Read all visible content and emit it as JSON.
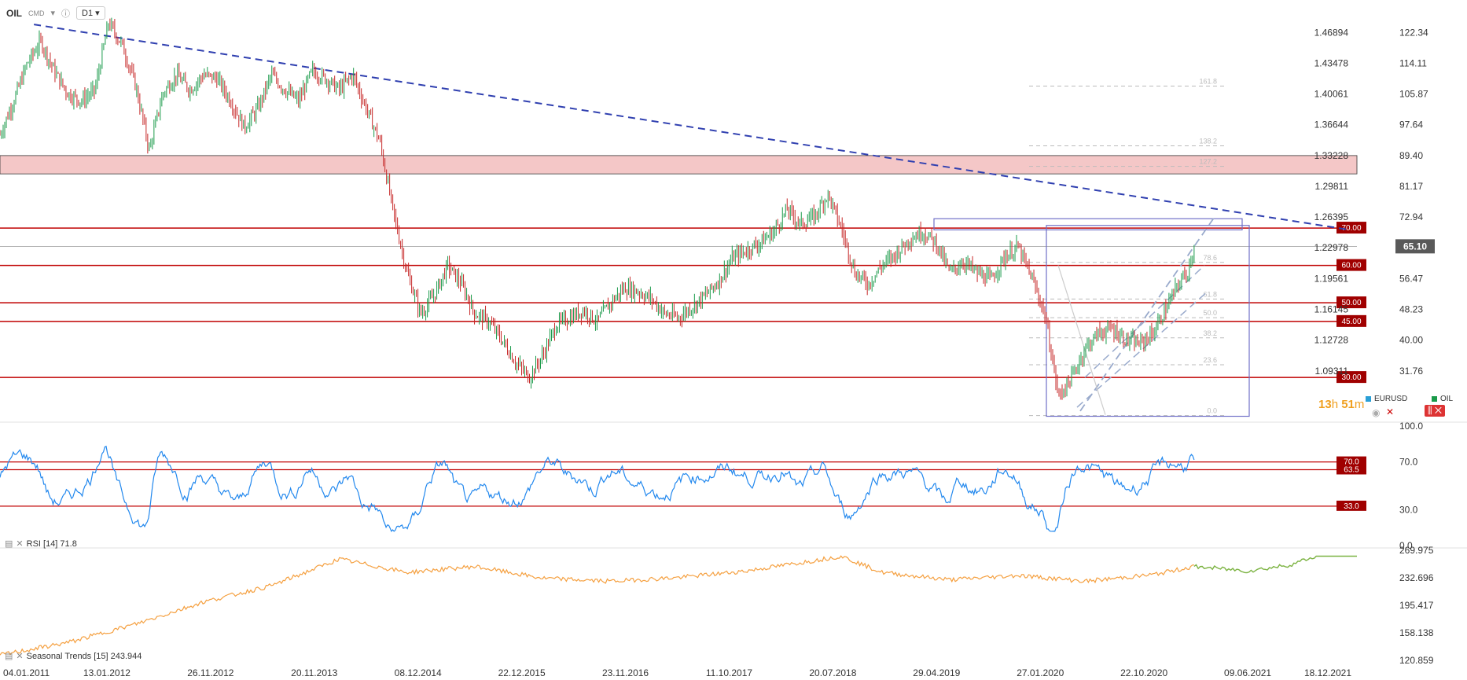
{
  "toolbar": {
    "symbol": "OIL",
    "exchange": "CMD",
    "timeframe": "D1"
  },
  "legend": {
    "eurusd": "EURUSD",
    "oil": "OIL",
    "eurusd_color": "#2a9fd6",
    "oil_color": "#1a9a4a"
  },
  "timer": {
    "hours": "13",
    "h": "h",
    "minutes": "51",
    "m": "m"
  },
  "current_price": "65.10",
  "rsi_label": "RSI [14]  71.8",
  "seasonal_label": "Seasonal  Trends [15]  243.944",
  "colors": {
    "rsi": "#2288ee",
    "seasonal": "#f5a040",
    "projection": "#7cb342",
    "level": "#c00000",
    "trend": "#3040b0",
    "zone": "#f4c7c7"
  },
  "chart_data": [
    {
      "type": "candlestick",
      "name": "OIL",
      "x_ticks": [
        "04.01.2011",
        "13.01.2012",
        "26.11.2012",
        "20.11.2013",
        "08.12.2014",
        "22.12.2015",
        "23.11.2016",
        "11.10.2017",
        "20.07.2018",
        "29.04.2019",
        "27.01.2020",
        "22.10.2020",
        "09.06.2021",
        "18.12.2021"
      ],
      "y_right_ticks": [
        122.34,
        114.11,
        105.87,
        97.64,
        89.4,
        81.17,
        72.94,
        64.7,
        56.47,
        48.23,
        40.0,
        31.76
      ],
      "y_left_ticks_eurusd": [
        1.46894,
        1.43478,
        1.40061,
        1.36644,
        1.33228,
        1.29811,
        1.26395,
        1.22978,
        1.19561,
        1.16145,
        1.12728,
        1.09311
      ],
      "ylim": [
        19.5,
        130.0
      ],
      "price_path": [
        [
          0,
          95
        ],
        [
          0.01,
          104
        ],
        [
          0.02,
          114
        ],
        [
          0.03,
          120
        ],
        [
          0.04,
          112
        ],
        [
          0.05,
          106
        ],
        [
          0.06,
          104
        ],
        [
          0.07,
          107
        ],
        [
          0.08,
          125
        ],
        [
          0.09,
          119
        ],
        [
          0.1,
          108
        ],
        [
          0.11,
          91
        ],
        [
          0.12,
          106
        ],
        [
          0.13,
          111
        ],
        [
          0.14,
          107
        ],
        [
          0.15,
          111
        ],
        [
          0.16,
          110
        ],
        [
          0.17,
          104
        ],
        [
          0.18,
          97
        ],
        [
          0.19,
          102
        ],
        [
          0.2,
          111
        ],
        [
          0.21,
          107
        ],
        [
          0.22,
          104
        ],
        [
          0.23,
          112
        ],
        [
          0.24,
          110
        ],
        [
          0.25,
          107
        ],
        [
          0.26,
          111
        ],
        [
          0.27,
          102
        ],
        [
          0.28,
          93
        ],
        [
          0.29,
          74
        ],
        [
          0.3,
          58
        ],
        [
          0.31,
          47
        ],
        [
          0.32,
          52
        ],
        [
          0.33,
          60
        ],
        [
          0.34,
          55
        ],
        [
          0.35,
          47
        ],
        [
          0.36,
          45
        ],
        [
          0.37,
          40
        ],
        [
          0.38,
          34
        ],
        [
          0.39,
          30
        ],
        [
          0.4,
          36
        ],
        [
          0.41,
          44
        ],
        [
          0.42,
          46
        ],
        [
          0.43,
          48
        ],
        [
          0.44,
          45
        ],
        [
          0.45,
          50
        ],
        [
          0.46,
          54
        ],
        [
          0.47,
          53
        ],
        [
          0.48,
          51
        ],
        [
          0.49,
          47
        ],
        [
          0.5,
          46
        ],
        [
          0.51,
          49
        ],
        [
          0.52,
          52
        ],
        [
          0.53,
          56
        ],
        [
          0.54,
          62
        ],
        [
          0.55,
          64
        ],
        [
          0.56,
          66
        ],
        [
          0.57,
          69
        ],
        [
          0.58,
          75
        ],
        [
          0.59,
          71
        ],
        [
          0.6,
          73
        ],
        [
          0.61,
          79
        ],
        [
          0.62,
          70
        ],
        [
          0.63,
          58
        ],
        [
          0.64,
          55
        ],
        [
          0.65,
          60
        ],
        [
          0.66,
          63
        ],
        [
          0.67,
          67
        ],
        [
          0.68,
          69
        ],
        [
          0.69,
          66
        ],
        [
          0.7,
          58
        ],
        [
          0.71,
          61
        ],
        [
          0.72,
          58
        ],
        [
          0.73,
          56
        ],
        [
          0.74,
          62
        ],
        [
          0.75,
          65
        ],
        [
          0.76,
          57
        ],
        [
          0.77,
          47
        ],
        [
          0.78,
          25
        ],
        [
          0.79,
          30
        ],
        [
          0.8,
          38
        ],
        [
          0.81,
          42
        ],
        [
          0.82,
          43
        ],
        [
          0.83,
          40
        ],
        [
          0.84,
          39
        ],
        [
          0.85,
          42
        ],
        [
          0.86,
          49
        ],
        [
          0.87,
          56
        ],
        [
          0.875,
          58
        ],
        [
          0.88,
          65.1
        ]
      ],
      "horizontal_levels": [
        70.0,
        60.0,
        50.0,
        45.0,
        30.0
      ],
      "resistance_zone": [
        84.5,
        89.4
      ],
      "current_price_line": 65.1,
      "trendline": {
        "from": [
          0.025,
          124.5
        ],
        "to": [
          0.995,
          69.5
        ]
      },
      "fibonacci_levels": [
        "161.8",
        "138.2",
        "127.2",
        "78.6",
        "61.8",
        "50.0",
        "38.2",
        "23.6",
        "0.0"
      ],
      "channel": "ascending parallel channel from 2020 low",
      "annotations": [
        "70.00",
        "60.00",
        "50.00",
        "45.00",
        "30.00"
      ]
    },
    {
      "type": "line",
      "name": "RSI [14]",
      "value": 71.8,
      "y_ticks": [
        100.0,
        70.0,
        30.0,
        0.0
      ],
      "levels": [
        70.0,
        63.5,
        33.0
      ],
      "ylim": [
        0,
        100
      ]
    },
    {
      "type": "line",
      "name": "Seasonal Trends [15]",
      "value": 243.944,
      "y_ticks": [
        269.975,
        232.696,
        195.417,
        158.138,
        120.859
      ],
      "ylim": [
        120.859,
        269.975
      ],
      "series": [
        {
          "values_path": [
            [
              0,
              128
            ],
            [
              0.05,
              145
            ],
            [
              0.1,
              170
            ],
            [
              0.15,
              200
            ],
            [
              0.2,
              222
            ],
            [
              0.25,
              258
            ],
            [
              0.3,
              240
            ],
            [
              0.35,
              248
            ],
            [
              0.4,
              232
            ],
            [
              0.45,
              228
            ],
            [
              0.5,
              233
            ],
            [
              0.55,
              242
            ],
            [
              0.6,
              256
            ],
            [
              0.62,
              262
            ],
            [
              0.65,
              240
            ],
            [
              0.7,
              230
            ],
            [
              0.75,
              236
            ],
            [
              0.8,
              228
            ],
            [
              0.85,
              237
            ],
            [
              0.88,
              248
            ]
          ]
        },
        {
          "projection": true,
          "values_path": [
            [
              0.88,
              248
            ],
            [
              0.92,
              242
            ],
            [
              0.95,
              250
            ],
            [
              0.97,
              262
            ],
            [
              1.0,
              262
            ]
          ]
        }
      ]
    }
  ]
}
